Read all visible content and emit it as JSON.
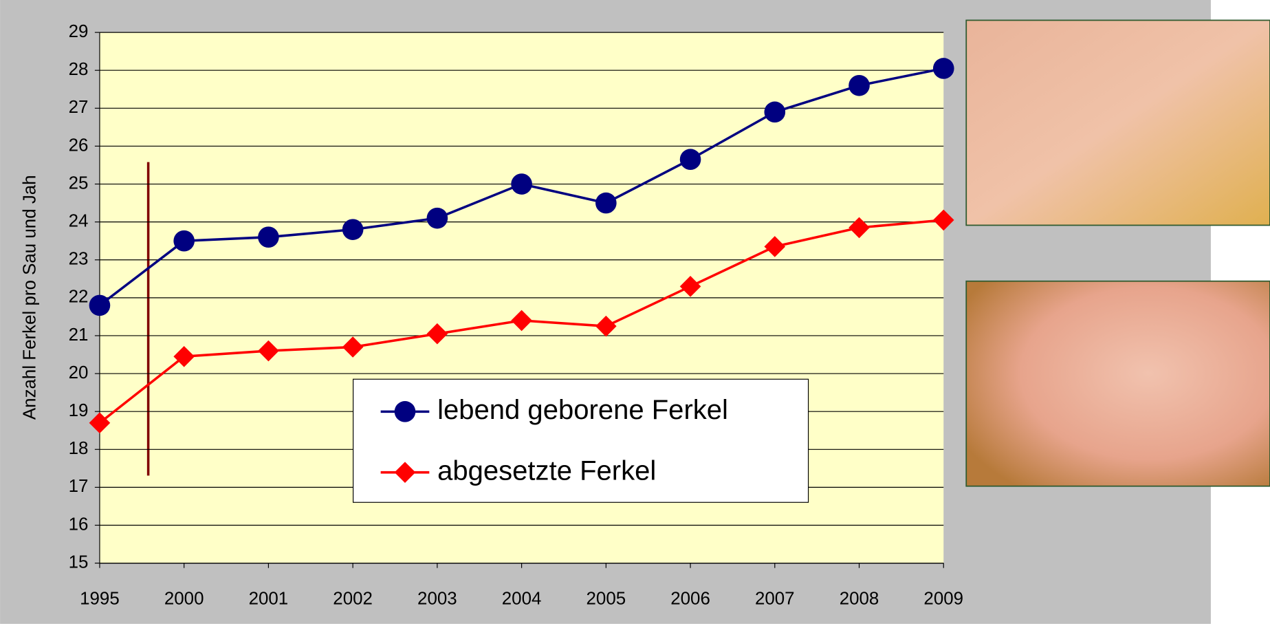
{
  "chart_data": {
    "type": "line",
    "y_label": "Anzahl Ferkel pro Sau und Jah",
    "categories": [
      "1995",
      "2000",
      "2001",
      "2002",
      "2003",
      "2004",
      "2005",
      "2006",
      "2007",
      "2008",
      "2009"
    ],
    "series": [
      {
        "name": "lebend geborene Ferkel",
        "color": "#000080",
        "marker": "circle",
        "values": [
          21.8,
          23.5,
          23.6,
          23.8,
          24.1,
          25.0,
          24.5,
          25.65,
          26.9,
          27.6,
          28.05
        ]
      },
      {
        "name": "abgesetzte Ferkel",
        "color": "#ff0000",
        "marker": "diamond",
        "values": [
          18.7,
          20.45,
          20.6,
          20.7,
          21.05,
          21.4,
          21.25,
          22.3,
          23.35,
          23.85,
          24.05
        ]
      }
    ],
    "ylim": [
      15,
      29
    ],
    "yticks": [
      15,
      16,
      17,
      18,
      19,
      20,
      21,
      22,
      23,
      24,
      25,
      26,
      27,
      28,
      29
    ],
    "grid": true
  }
}
